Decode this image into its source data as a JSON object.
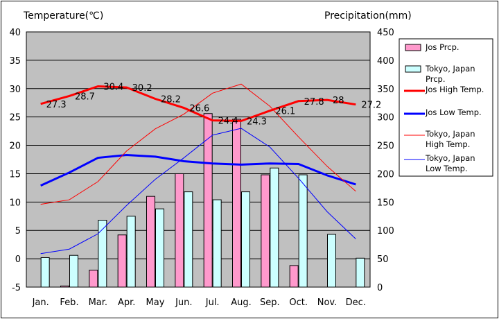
{
  "chart_data": {
    "type": "bar",
    "ylabel_left": "Temperature(℃)",
    "ylabel_right": "Precipitation(mm)",
    "categories": [
      "Jan.",
      "Feb.",
      "Mar.",
      "Apr.",
      "May",
      "Jun.",
      "Jul.",
      "Aug.",
      "Sep.",
      "Oct.",
      "Nov.",
      "Dec."
    ],
    "ylim_left": [
      -5,
      40
    ],
    "yticks_left": [
      "40",
      "35",
      "30",
      "25",
      "20",
      "15",
      "10",
      "5",
      "0",
      "-5"
    ],
    "ylim_right": [
      0,
      450
    ],
    "yticks_right": [
      "450",
      "400",
      "350",
      "300",
      "250",
      "200",
      "150",
      "100",
      "50",
      "0"
    ],
    "bar_series": [
      {
        "name": "Jos Prcp.",
        "color": "#ff99cc",
        "values": [
          0,
          2,
          30,
          92,
          160,
          200,
          306,
          296,
          198,
          38,
          0,
          0
        ]
      },
      {
        "name": "Tokyo, Japan Prcp.",
        "color": "#ccffff",
        "values": [
          52,
          56,
          118,
          125,
          138,
          168,
          154,
          168,
          210,
          198,
          93,
          51
        ]
      }
    ],
    "line_series": [
      {
        "name": "Jos High Temp.",
        "color": "#ff0000",
        "width": 3,
        "values": [
          27.3,
          28.7,
          30.4,
          30.2,
          28.2,
          26.6,
          24.4,
          24.3,
          26.1,
          27.8,
          28,
          27.2
        ]
      },
      {
        "name": "Jos Low Temp.",
        "color": "#0000ff",
        "width": 3,
        "values": [
          12.9,
          15.2,
          17.8,
          18.3,
          18,
          17.2,
          16.8,
          16.6,
          16.8,
          16.7,
          14.7,
          13.1
        ]
      },
      {
        "name": "Tokyo, Japan High Temp.",
        "color": "#ff0000",
        "width": 1,
        "values": [
          9.6,
          10.4,
          13.6,
          19,
          22.9,
          25.5,
          29.2,
          30.8,
          26.9,
          21.5,
          16.3,
          11.9
        ]
      },
      {
        "name": "Tokyo, Japan Low Temp.",
        "color": "#0000ff",
        "width": 1,
        "values": [
          0.9,
          1.7,
          4.4,
          9.4,
          14,
          17.8,
          21.8,
          23,
          19.7,
          14.2,
          8.3,
          3.5
        ]
      }
    ],
    "data_labels": [
      "27.3",
      "28.7",
      "30.4",
      "30.2",
      "28.2",
      "26.6",
      "24.4",
      "24.3",
      "26.1",
      "27.8",
      "28",
      "27.2"
    ],
    "legend": {
      "position": "right",
      "entries": [
        {
          "lines": [
            "Jos Prcp."
          ],
          "kind": "bar",
          "color": "#ff99cc"
        },
        {
          "lines": [
            "Tokyo, Japan",
            "Prcp."
          ],
          "kind": "bar",
          "color": "#ccffff"
        },
        {
          "lines": [
            "Jos High Temp."
          ],
          "kind": "line",
          "color": "#ff0000",
          "width": 3
        },
        {
          "lines": [
            "Jos Low Temp."
          ],
          "kind": "line",
          "color": "#0000ff",
          "width": 3
        },
        {
          "lines": [
            "Tokyo, Japan",
            "High Temp."
          ],
          "kind": "line",
          "color": "#ff0000",
          "width": 1
        },
        {
          "lines": [
            "Tokyo, Japan",
            "Low Temp."
          ],
          "kind": "line",
          "color": "#0000ff",
          "width": 1
        }
      ]
    },
    "grid": true,
    "plot_background": "#c0c0c0"
  }
}
